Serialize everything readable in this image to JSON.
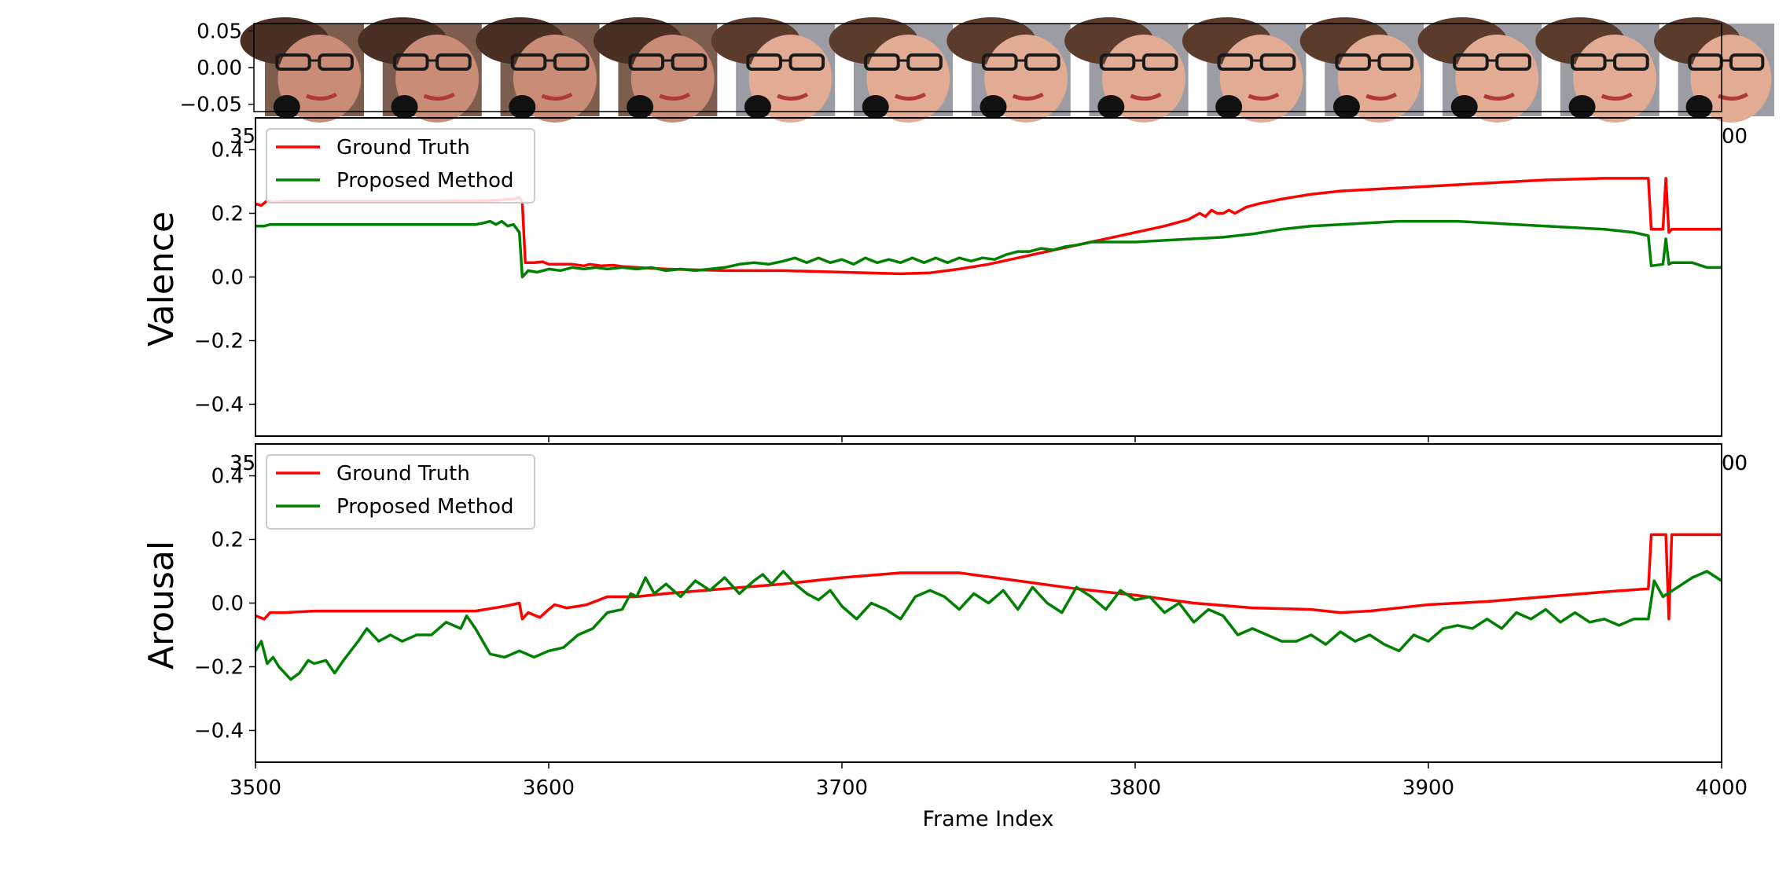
{
  "chart_data": [
    {
      "type": "image-strip",
      "ytick_labels": [
        "0.05",
        "0.00",
        "−0.05"
      ],
      "yticks": [
        0.05,
        0.0,
        -0.05
      ],
      "ylim": [
        -0.06,
        0.06
      ],
      "frames": 13,
      "partial_xtick_labels": [
        "35",
        "00"
      ]
    },
    {
      "type": "line",
      "ylabel": "Valence",
      "xlim": [
        3500,
        4000
      ],
      "ylim": [
        -0.5,
        0.5
      ],
      "yticks": [
        0.4,
        0.2,
        0.0,
        -0.2,
        -0.4
      ],
      "ytick_labels": [
        "0.4",
        "0.2",
        "0.0",
        "−0.2",
        "−0.4"
      ],
      "partial_xtick_labels": [
        "35",
        "00"
      ],
      "legend_position": "top-left",
      "series": [
        {
          "name": "Ground Truth",
          "color": "#ff0000",
          "x": [
            3500,
            3502,
            3504,
            3506,
            3510,
            3520,
            3530,
            3540,
            3560,
            3580,
            3588,
            3590,
            3591,
            3592,
            3595,
            3598,
            3600,
            3603,
            3606,
            3608,
            3612,
            3614,
            3618,
            3622,
            3625,
            3630,
            3640,
            3660,
            3680,
            3700,
            3720,
            3730,
            3740,
            3750,
            3760,
            3770,
            3780,
            3790,
            3800,
            3810,
            3818,
            3822,
            3824,
            3826,
            3828,
            3830,
            3832,
            3834,
            3838,
            3842,
            3850,
            3860,
            3870,
            3880,
            3900,
            3920,
            3940,
            3960,
            3975,
            3976,
            3977,
            3979,
            3980,
            3981,
            3982,
            3983,
            3984,
            3990,
            4000
          ],
          "y": [
            0.23,
            0.225,
            0.24,
            0.235,
            0.238,
            0.238,
            0.238,
            0.238,
            0.238,
            0.24,
            0.245,
            0.25,
            0.235,
            0.045,
            0.045,
            0.048,
            0.04,
            0.04,
            0.04,
            0.04,
            0.035,
            0.04,
            0.035,
            0.037,
            0.033,
            0.03,
            0.025,
            0.02,
            0.02,
            0.015,
            0.01,
            0.013,
            0.025,
            0.04,
            0.06,
            0.08,
            0.1,
            0.12,
            0.14,
            0.16,
            0.18,
            0.2,
            0.19,
            0.21,
            0.2,
            0.2,
            0.21,
            0.2,
            0.22,
            0.23,
            0.245,
            0.26,
            0.27,
            0.275,
            0.285,
            0.295,
            0.305,
            0.31,
            0.31,
            0.15,
            0.15,
            0.15,
            0.15,
            0.31,
            0.14,
            0.15,
            0.15,
            0.15,
            0.15
          ]
        },
        {
          "name": "Proposed Method",
          "color": "#008000",
          "x": [
            3500,
            3503,
            3505,
            3510,
            3520,
            3540,
            3560,
            3575,
            3578,
            3580,
            3582,
            3584,
            3586,
            3588,
            3590,
            3591,
            3593,
            3596,
            3600,
            3604,
            3608,
            3612,
            3616,
            3620,
            3625,
            3630,
            3635,
            3640,
            3645,
            3650,
            3655,
            3660,
            3665,
            3670,
            3675,
            3680,
            3684,
            3688,
            3692,
            3696,
            3700,
            3704,
            3708,
            3712,
            3716,
            3720,
            3724,
            3728,
            3732,
            3736,
            3740,
            3744,
            3748,
            3752,
            3756,
            3760,
            3764,
            3768,
            3772,
            3776,
            3780,
            3785,
            3790,
            3800,
            3810,
            3820,
            3830,
            3840,
            3850,
            3860,
            3870,
            3880,
            3890,
            3900,
            3910,
            3920,
            3930,
            3940,
            3950,
            3960,
            3965,
            3970,
            3975,
            3976,
            3980,
            3981,
            3982,
            3983,
            3985,
            3990,
            3995,
            4000
          ],
          "y": [
            0.16,
            0.16,
            0.165,
            0.165,
            0.165,
            0.165,
            0.165,
            0.165,
            0.17,
            0.175,
            0.165,
            0.175,
            0.16,
            0.165,
            0.14,
            0.0,
            0.02,
            0.015,
            0.025,
            0.02,
            0.03,
            0.025,
            0.03,
            0.025,
            0.03,
            0.025,
            0.03,
            0.02,
            0.025,
            0.02,
            0.025,
            0.03,
            0.04,
            0.045,
            0.04,
            0.05,
            0.06,
            0.045,
            0.06,
            0.045,
            0.055,
            0.04,
            0.06,
            0.045,
            0.055,
            0.045,
            0.06,
            0.045,
            0.06,
            0.045,
            0.06,
            0.05,
            0.06,
            0.055,
            0.07,
            0.08,
            0.08,
            0.09,
            0.085,
            0.095,
            0.1,
            0.11,
            0.11,
            0.11,
            0.115,
            0.12,
            0.125,
            0.135,
            0.15,
            0.16,
            0.165,
            0.17,
            0.175,
            0.175,
            0.175,
            0.17,
            0.165,
            0.16,
            0.155,
            0.15,
            0.145,
            0.14,
            0.13,
            0.035,
            0.04,
            0.12,
            0.04,
            0.045,
            0.045,
            0.045,
            0.03,
            0.03
          ]
        }
      ]
    },
    {
      "type": "line",
      "ylabel": "Arousal",
      "xlabel": "Frame Index",
      "xlim": [
        3500,
        4000
      ],
      "ylim": [
        -0.5,
        0.5
      ],
      "xticks": [
        3500,
        3600,
        3700,
        3800,
        3900,
        4000
      ],
      "xtick_labels": [
        "3500",
        "3600",
        "3700",
        "3800",
        "3900",
        "4000"
      ],
      "yticks": [
        0.4,
        0.2,
        0.0,
        -0.2,
        -0.4
      ],
      "ytick_labels": [
        "0.4",
        "0.2",
        "0.0",
        "−0.2",
        "−0.4"
      ],
      "partial_xtick_labels": [
        "35",
        "00"
      ],
      "legend_position": "top-left",
      "series": [
        {
          "name": "Ground Truth",
          "color": "#ff0000",
          "x": [
            3500,
            3503,
            3505,
            3510,
            3520,
            3540,
            3560,
            3575,
            3585,
            3590,
            3591,
            3593,
            3597,
            3600,
            3602,
            3606,
            3610,
            3613,
            3620,
            3630,
            3640,
            3660,
            3680,
            3700,
            3720,
            3740,
            3760,
            3780,
            3800,
            3820,
            3840,
            3860,
            3870,
            3880,
            3900,
            3920,
            3940,
            3960,
            3975,
            3976,
            3980,
            3981,
            3982,
            3983,
            3985,
            3990,
            4000
          ],
          "y": [
            -0.04,
            -0.05,
            -0.03,
            -0.03,
            -0.025,
            -0.025,
            -0.025,
            -0.025,
            -0.01,
            0.0,
            -0.05,
            -0.03,
            -0.045,
            -0.02,
            -0.005,
            -0.015,
            -0.01,
            -0.005,
            0.02,
            0.02,
            0.03,
            0.045,
            0.06,
            0.08,
            0.095,
            0.095,
            0.07,
            0.045,
            0.025,
            0.0,
            -0.015,
            -0.02,
            -0.03,
            -0.025,
            -0.005,
            0.005,
            0.02,
            0.035,
            0.045,
            0.215,
            0.215,
            0.215,
            -0.05,
            0.215,
            0.215,
            0.215,
            0.215
          ]
        },
        {
          "name": "Proposed Method",
          "color": "#008000",
          "x": [
            3500,
            3502,
            3504,
            3506,
            3508,
            3510,
            3512,
            3515,
            3518,
            3520,
            3524,
            3527,
            3530,
            3535,
            3538,
            3542,
            3546,
            3550,
            3555,
            3560,
            3565,
            3570,
            3572,
            3575,
            3580,
            3585,
            3590,
            3595,
            3600,
            3605,
            3610,
            3615,
            3620,
            3625,
            3628,
            3630,
            3633,
            3636,
            3640,
            3645,
            3650,
            3655,
            3660,
            3665,
            3670,
            3673,
            3676,
            3680,
            3684,
            3688,
            3692,
            3696,
            3700,
            3705,
            3710,
            3715,
            3720,
            3725,
            3730,
            3735,
            3740,
            3745,
            3750,
            3755,
            3760,
            3765,
            3770,
            3775,
            3780,
            3785,
            3790,
            3795,
            3800,
            3805,
            3810,
            3815,
            3820,
            3825,
            3830,
            3835,
            3840,
            3845,
            3850,
            3855,
            3860,
            3865,
            3870,
            3875,
            3880,
            3885,
            3890,
            3895,
            3900,
            3905,
            3910,
            3915,
            3920,
            3925,
            3930,
            3935,
            3940,
            3945,
            3950,
            3955,
            3960,
            3965,
            3970,
            3975,
            3977,
            3980,
            3985,
            3990,
            3995,
            4000
          ],
          "y": [
            -0.15,
            -0.12,
            -0.19,
            -0.17,
            -0.2,
            -0.22,
            -0.24,
            -0.22,
            -0.18,
            -0.19,
            -0.18,
            -0.22,
            -0.18,
            -0.12,
            -0.08,
            -0.12,
            -0.1,
            -0.12,
            -0.1,
            -0.1,
            -0.06,
            -0.08,
            -0.04,
            -0.08,
            -0.16,
            -0.17,
            -0.15,
            -0.17,
            -0.15,
            -0.14,
            -0.1,
            -0.08,
            -0.03,
            -0.02,
            0.03,
            0.02,
            0.08,
            0.03,
            0.06,
            0.02,
            0.07,
            0.04,
            0.08,
            0.03,
            0.07,
            0.09,
            0.06,
            0.1,
            0.06,
            0.03,
            0.01,
            0.04,
            -0.01,
            -0.05,
            0.0,
            -0.02,
            -0.05,
            0.02,
            0.04,
            0.02,
            -0.02,
            0.03,
            0.0,
            0.04,
            -0.02,
            0.05,
            0.0,
            -0.03,
            0.05,
            0.02,
            -0.02,
            0.04,
            0.01,
            0.02,
            -0.03,
            0.0,
            -0.06,
            -0.02,
            -0.04,
            -0.1,
            -0.08,
            -0.1,
            -0.12,
            -0.12,
            -0.1,
            -0.13,
            -0.09,
            -0.12,
            -0.1,
            -0.13,
            -0.15,
            -0.1,
            -0.12,
            -0.08,
            -0.07,
            -0.08,
            -0.05,
            -0.08,
            -0.03,
            -0.05,
            -0.02,
            -0.06,
            -0.03,
            -0.06,
            -0.05,
            -0.07,
            -0.05,
            -0.05,
            0.07,
            0.02,
            0.05,
            0.08,
            0.1,
            0.07
          ]
        }
      ]
    }
  ]
}
